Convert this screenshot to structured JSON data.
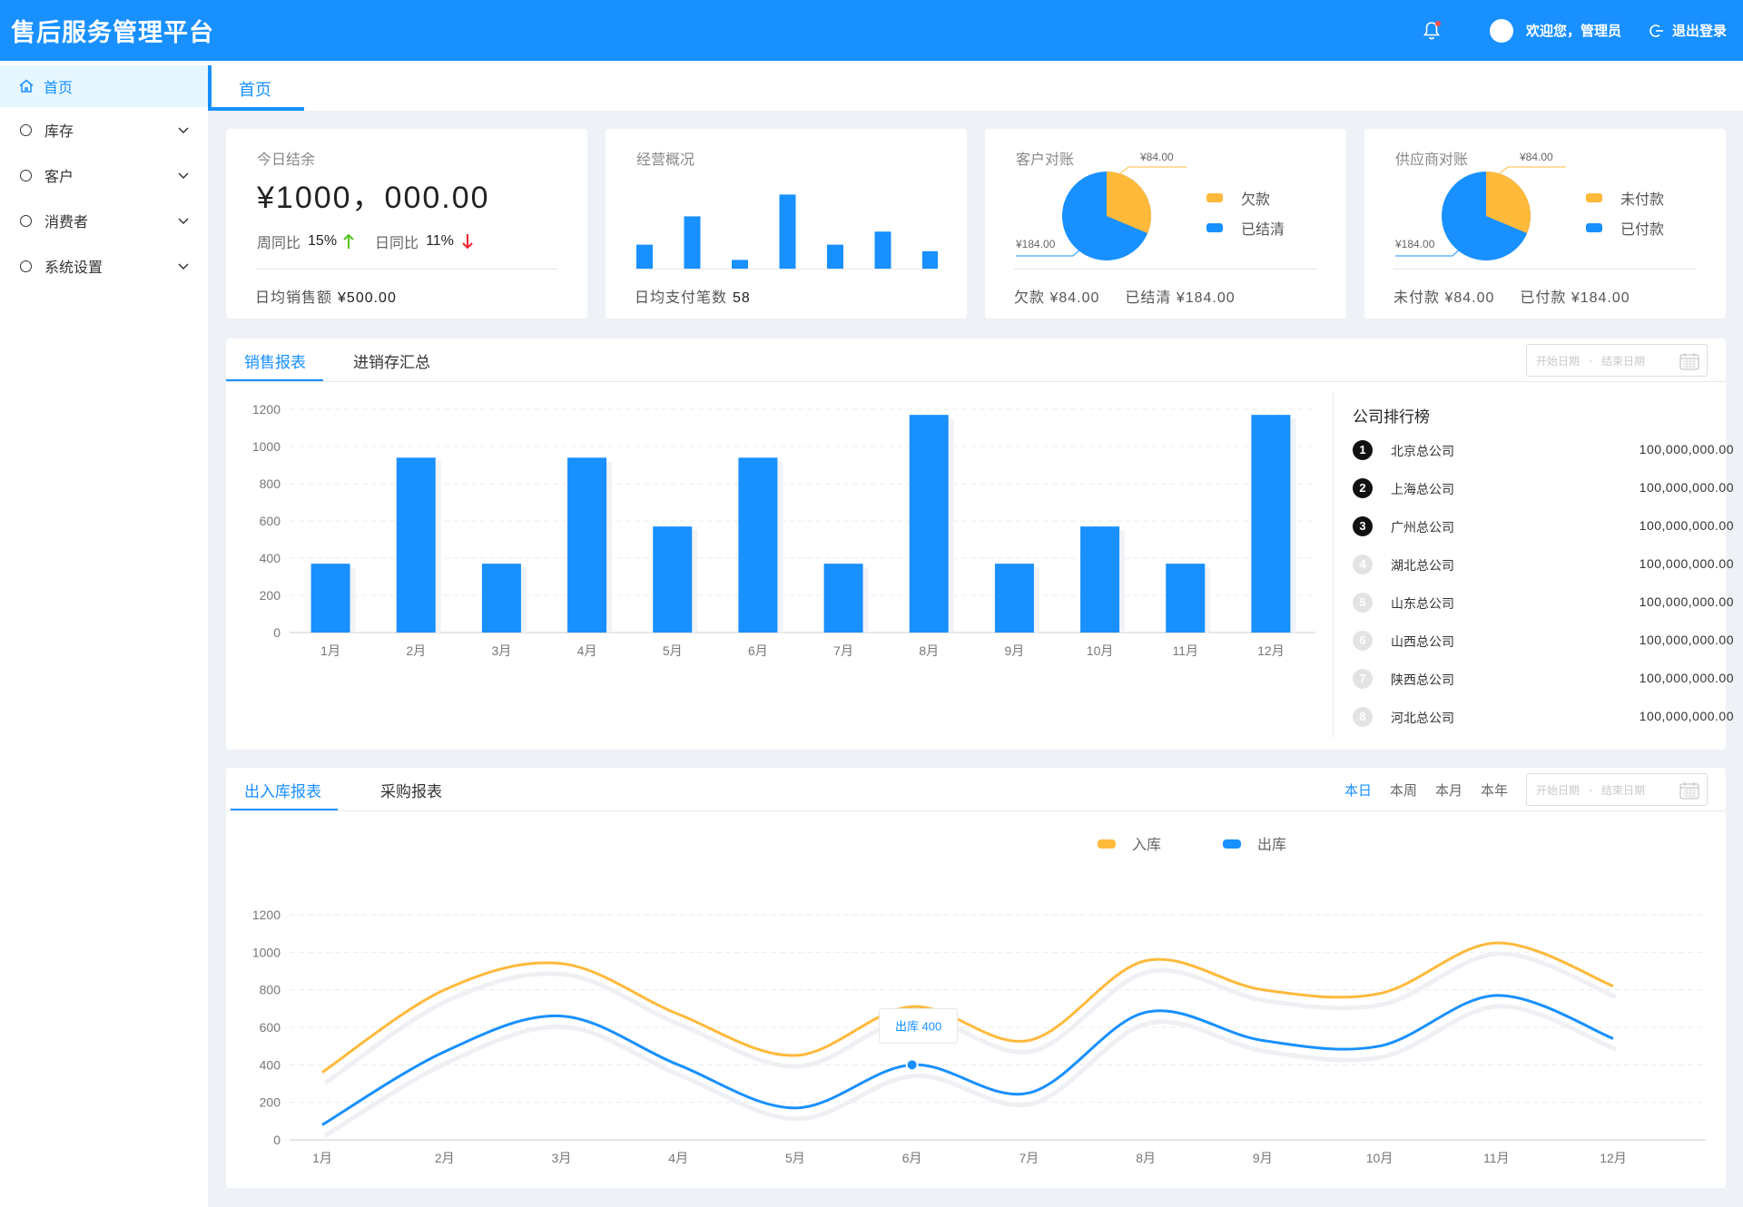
{
  "header": {
    "title": "售后服务管理平台",
    "welcome": "欢迎您，管理员",
    "logout": "退出登录"
  },
  "sidebar": {
    "items": [
      {
        "label": "首页",
        "icon": "home-icon"
      },
      {
        "label": "库存",
        "icon": "circle-icon"
      },
      {
        "label": "客户",
        "icon": "circle-icon"
      },
      {
        "label": "消费者",
        "icon": "circle-icon"
      },
      {
        "label": "系统设置",
        "icon": "circle-icon"
      }
    ]
  },
  "tabs": {
    "active": "首页"
  },
  "cards": {
    "balance": {
      "title": "今日结余",
      "value": "¥1000，000.00",
      "wow_label": "周同比",
      "wow_value": "15%",
      "dod_label": "日同比",
      "dod_value": "11%",
      "foot_label": "日均销售额",
      "foot_value": "¥500.00"
    },
    "operations": {
      "title": "经营概况",
      "foot_label": "日均支付笔数",
      "foot_value": "58",
      "bars": [
        22,
        48,
        8,
        68,
        22,
        34,
        16
      ]
    },
    "customer": {
      "title": "客户对账",
      "label_top": "¥84.00",
      "label_bottom": "¥184.00",
      "legend": [
        "欠款",
        "已结清"
      ],
      "values": [
        84,
        184
      ],
      "foot_a": "欠款 ¥84.00",
      "foot_b": "已结清 ¥184.00"
    },
    "supplier": {
      "title": "供应商对账",
      "label_top": "¥84.00",
      "label_bottom": "¥184.00",
      "legend": [
        "未付款",
        "已付款"
      ],
      "values": [
        84,
        184
      ],
      "foot_a": "未付款 ¥84.00",
      "foot_b": "已付款 ¥184.00"
    }
  },
  "sales": {
    "tabs": [
      "销售报表",
      "进销存汇总"
    ],
    "date_start": "开始日期",
    "date_sep": "-",
    "date_end": "结束日期",
    "ranking_title": "公司排行榜",
    "ranking": [
      {
        "rank": "1",
        "name": "北京总公司",
        "value": "100,000,000.00"
      },
      {
        "rank": "2",
        "name": "上海总公司",
        "value": "100,000,000.00"
      },
      {
        "rank": "3",
        "name": "广州总公司",
        "value": "100,000,000.00"
      },
      {
        "rank": "4",
        "name": "湖北总公司",
        "value": "100,000,000.00"
      },
      {
        "rank": "5",
        "name": "山东总公司",
        "value": "100,000,000.00"
      },
      {
        "rank": "6",
        "name": "山西总公司",
        "value": "100,000,000.00"
      },
      {
        "rank": "7",
        "name": "陕西总公司",
        "value": "100,000,000.00"
      },
      {
        "rank": "8",
        "name": "河北总公司",
        "value": "100,000,000.00"
      }
    ]
  },
  "stock": {
    "tabs": [
      "出入库报表",
      "采购报表"
    ],
    "periods": [
      "本日",
      "本周",
      "本月",
      "本年"
    ],
    "date_start": "开始日期",
    "date_sep": "-",
    "date_end": "结束日期",
    "tooltip": "出库 400"
  },
  "colors": {
    "primary": "#1890ff",
    "accent": "#ffb93b",
    "up": "#52c41a",
    "down": "#f5222d"
  },
  "chart_data": [
    {
      "type": "bar",
      "categories": [
        "1月",
        "2月",
        "3月",
        "4月",
        "5月",
        "6月",
        "7月",
        "8月",
        "9月",
        "10月",
        "11月",
        "12月"
      ],
      "values": [
        370,
        940,
        370,
        940,
        570,
        940,
        370,
        1170,
        370,
        570,
        370,
        1170
      ],
      "ylim": [
        0,
        1200
      ],
      "yticks": [
        0,
        200,
        400,
        600,
        800,
        1000,
        1200
      ],
      "grid": true
    },
    {
      "type": "line",
      "categories": [
        "1月",
        "2月",
        "3月",
        "4月",
        "5月",
        "6月",
        "7月",
        "8月",
        "9月",
        "10月",
        "11月",
        "12月"
      ],
      "series": [
        {
          "name": "入库",
          "color": "#ffb93b",
          "values": [
            360,
            800,
            940,
            670,
            450,
            710,
            530,
            955,
            800,
            780,
            1050,
            820
          ]
        },
        {
          "name": "出库",
          "color": "#1890ff",
          "values": [
            80,
            470,
            660,
            400,
            170,
            400,
            250,
            680,
            530,
            500,
            770,
            540
          ]
        }
      ],
      "ylim": [
        0,
        1200
      ],
      "yticks": [
        0,
        200,
        400,
        600,
        800,
        1000,
        1200
      ],
      "legend": "top-center",
      "grid": true
    }
  ]
}
